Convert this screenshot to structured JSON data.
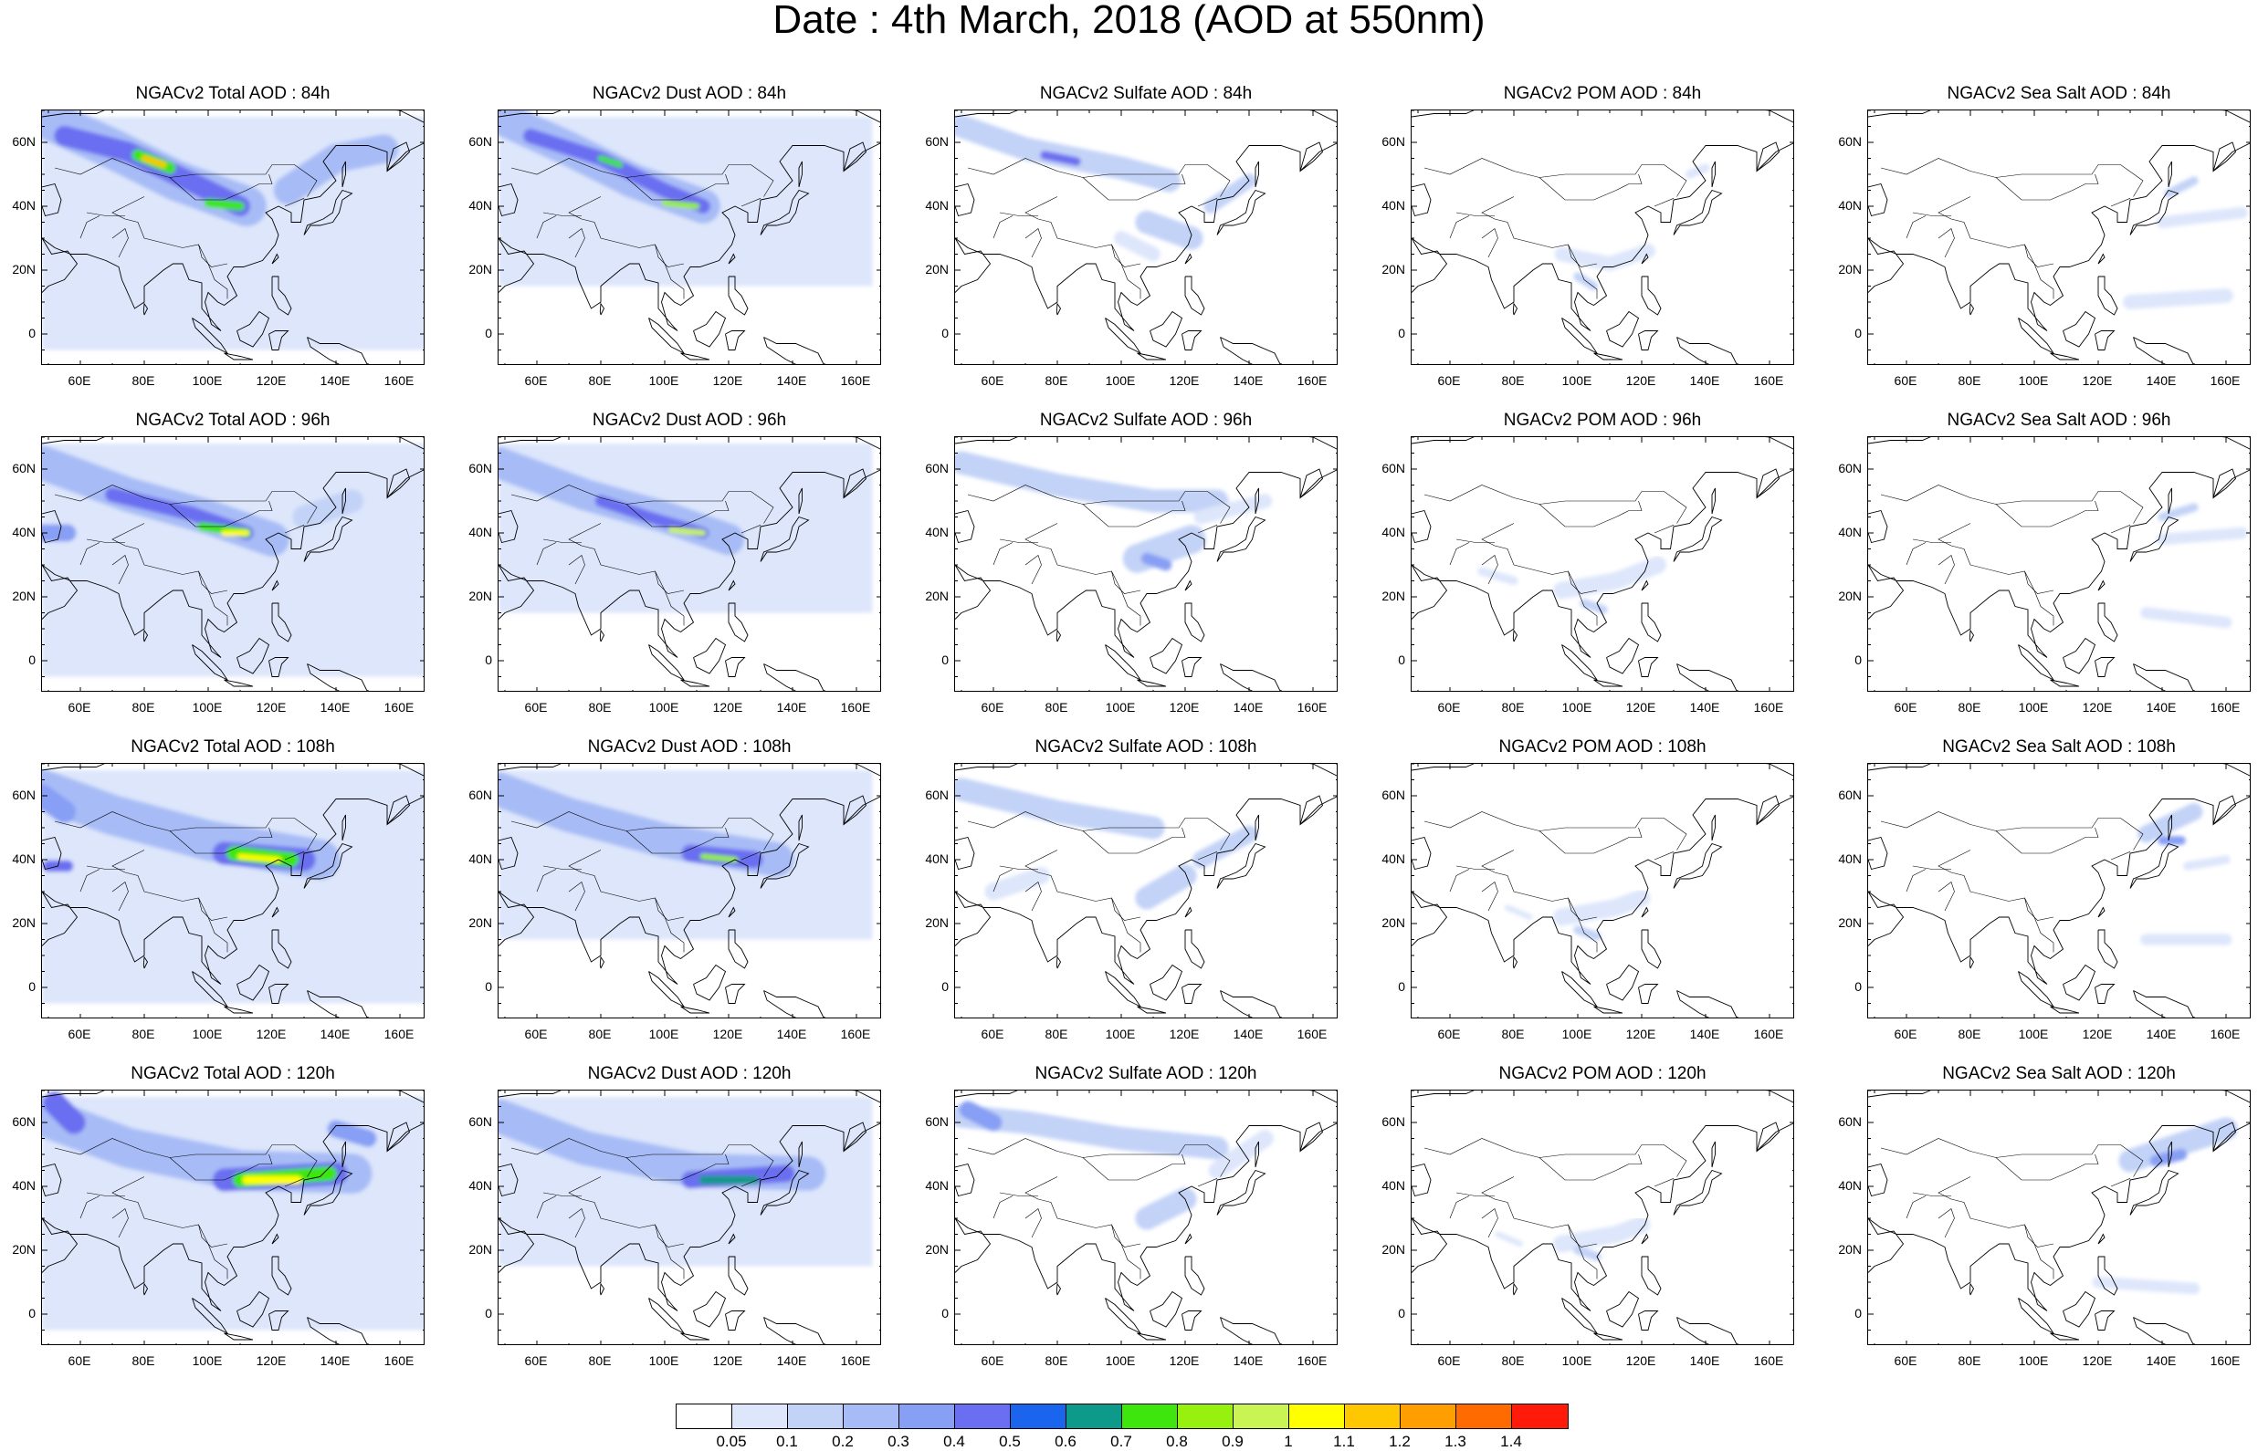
{
  "title": "Date : 4th March, 2018 (AOD at 550nm)",
  "y_ticks": [
    "60N",
    "40N",
    "20N",
    "0"
  ],
  "x_ticks": [
    "60E",
    "80E",
    "100E",
    "120E",
    "140E",
    "160E"
  ],
  "colorbar": {
    "labels": [
      "0.05",
      "0.1",
      "0.2",
      "0.3",
      "0.4",
      "0.5",
      "0.6",
      "0.7",
      "0.8",
      "0.9",
      "1",
      "1.1",
      "1.2",
      "1.3",
      "1.4"
    ],
    "colors": [
      "#ffffff",
      "#dde6fb",
      "#c3d3f7",
      "#a7bcf6",
      "#879ff4",
      "#6a6ef0",
      "#1a64ee",
      "#0e9a8a",
      "#3ee60e",
      "#98f00e",
      "#c9f453",
      "#ffff00",
      "#ffc700",
      "#ff9e00",
      "#ff6b00",
      "#ff1a0a"
    ]
  },
  "panels": [
    {
      "title": "NGACv2 Total AOD : 84h",
      "variable": "total",
      "hour": 84
    },
    {
      "title": "NGACv2 Dust AOD : 84h",
      "variable": "dust",
      "hour": 84
    },
    {
      "title": "NGACv2 Sulfate AOD : 84h",
      "variable": "sulfate",
      "hour": 84
    },
    {
      "title": "NGACv2 POM AOD : 84h",
      "variable": "pom",
      "hour": 84
    },
    {
      "title": "NGACv2 Sea Salt AOD : 84h",
      "variable": "seasalt",
      "hour": 84
    },
    {
      "title": "NGACv2 Total AOD : 96h",
      "variable": "total",
      "hour": 96
    },
    {
      "title": "NGACv2 Dust AOD : 96h",
      "variable": "dust",
      "hour": 96
    },
    {
      "title": "NGACv2 Sulfate AOD : 96h",
      "variable": "sulfate",
      "hour": 96
    },
    {
      "title": "NGACv2 POM AOD : 96h",
      "variable": "pom",
      "hour": 96
    },
    {
      "title": "NGACv2 Sea Salt AOD : 96h",
      "variable": "seasalt",
      "hour": 96
    },
    {
      "title": "NGACv2 Total AOD : 108h",
      "variable": "total",
      "hour": 108
    },
    {
      "title": "NGACv2 Dust AOD : 108h",
      "variable": "dust",
      "hour": 108
    },
    {
      "title": "NGACv2 Sulfate AOD : 108h",
      "variable": "sulfate",
      "hour": 108
    },
    {
      "title": "NGACv2 POM AOD : 108h",
      "variable": "pom",
      "hour": 108
    },
    {
      "title": "NGACv2 Sea Salt AOD : 108h",
      "variable": "seasalt",
      "hour": 108
    },
    {
      "title": "NGACv2 Total AOD : 120h",
      "variable": "total",
      "hour": 120
    },
    {
      "title": "NGACv2 Dust AOD : 120h",
      "variable": "dust",
      "hour": 120
    },
    {
      "title": "NGACv2 Sulfate AOD : 120h",
      "variable": "sulfate",
      "hour": 120
    },
    {
      "title": "NGACv2 POM AOD : 120h",
      "variable": "pom",
      "hour": 120
    },
    {
      "title": "NGACv2 Sea Salt  AOD : 120h",
      "variable": "seasalt",
      "hour": 120
    }
  ]
}
